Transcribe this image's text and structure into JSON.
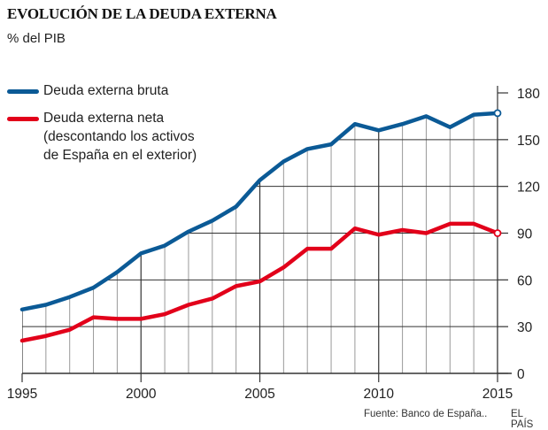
{
  "chart_data": {
    "type": "line",
    "title": "EVOLUCIÓN DE LA DEUDA EXTERNA",
    "subtitle": "% del PIB",
    "x": [
      1995,
      1996,
      1997,
      1998,
      1999,
      2000,
      2001,
      2002,
      2003,
      2004,
      2005,
      2006,
      2007,
      2008,
      2009,
      2010,
      2011,
      2012,
      2013,
      2014,
      2015
    ],
    "xticks": [
      "1995",
      "2000",
      "2005",
      "2010",
      "2015"
    ],
    "yticks": [
      "0",
      "30",
      "60",
      "90",
      "120",
      "150",
      "180"
    ],
    "ylim": [
      0,
      180
    ],
    "xlim": [
      1995,
      2015
    ],
    "grid": true,
    "series": [
      {
        "name": "Deuda externa bruta",
        "color": "#0b5a96",
        "values": [
          41,
          44,
          49,
          55,
          65,
          77,
          82,
          91,
          98,
          107,
          124,
          136,
          144,
          147,
          160,
          156,
          160,
          165,
          158,
          166,
          167
        ]
      },
      {
        "name": "Deuda externa neta",
        "name_lines": [
          "Deuda externa neta",
          "(descontando los activos",
          "de España en el exterior)"
        ],
        "color": "#e2001a",
        "values": [
          21,
          24,
          28,
          36,
          35,
          35,
          38,
          44,
          48,
          56,
          59,
          68,
          80,
          80,
          93,
          89,
          92,
          90,
          96,
          96,
          90
        ]
      }
    ],
    "legend_position": "top-left",
    "source": "Fuente: Banco de España..",
    "brand": "EL PAÍS"
  }
}
